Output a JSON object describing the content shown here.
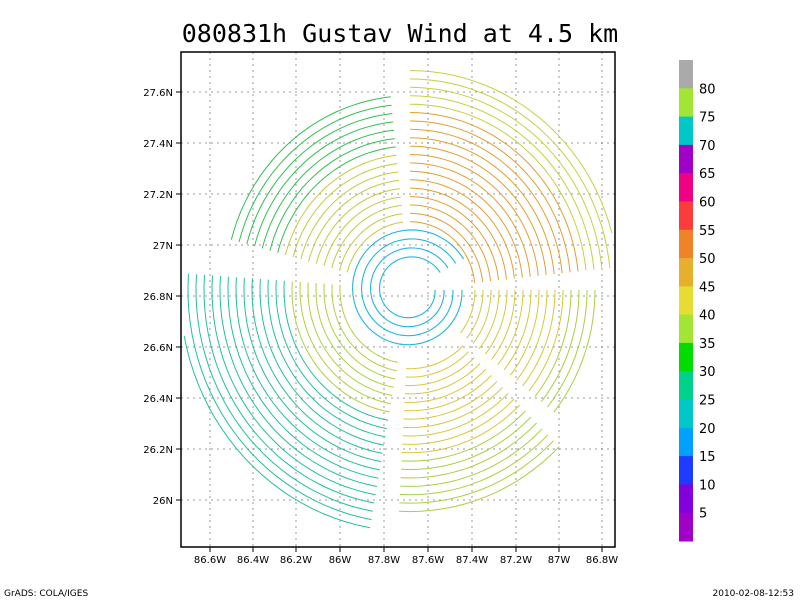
{
  "chart_data": {
    "type": "streamline",
    "title": "080831h Gustav Wind at 4.5 km",
    "x_ticks": [
      "86.6W",
      "86.4W",
      "86.2W",
      "86W",
      "87.8W",
      "87.6W",
      "87.4W",
      "87.2W",
      "87W",
      "86.8W"
    ],
    "y_ticks": [
      "27.6N",
      "27.4N",
      "27.2N",
      "27N",
      "26.8N",
      "26.6N",
      "26.4N",
      "26.2N",
      "26N"
    ],
    "xlim": [
      -88.7,
      -86.75
    ],
    "ylim": [
      25.83,
      27.75
    ],
    "grid": true,
    "center": {
      "lon": -87.65,
      "lat": 26.85
    },
    "colorbar": {
      "labels": [
        "5",
        "10",
        "15",
        "20",
        "25",
        "30",
        "35",
        "40",
        "45",
        "50",
        "55",
        "60",
        "65",
        "70",
        "75",
        "80"
      ],
      "colors": [
        "#a000c8",
        "#8200dc",
        "#1e3cff",
        "#00a0ff",
        "#00c8c8",
        "#00d28c",
        "#00dc00",
        "#a0e632",
        "#e6dc32",
        "#e6af2d",
        "#f08228",
        "#fa3c3c",
        "#f00082",
        "#a000c8",
        "#00c8c8",
        "#a0e632",
        "#aaaaaa"
      ]
    }
  },
  "footer": {
    "left": "GrADS: COLA/IGES",
    "right": "2010-02-08-12:53"
  }
}
